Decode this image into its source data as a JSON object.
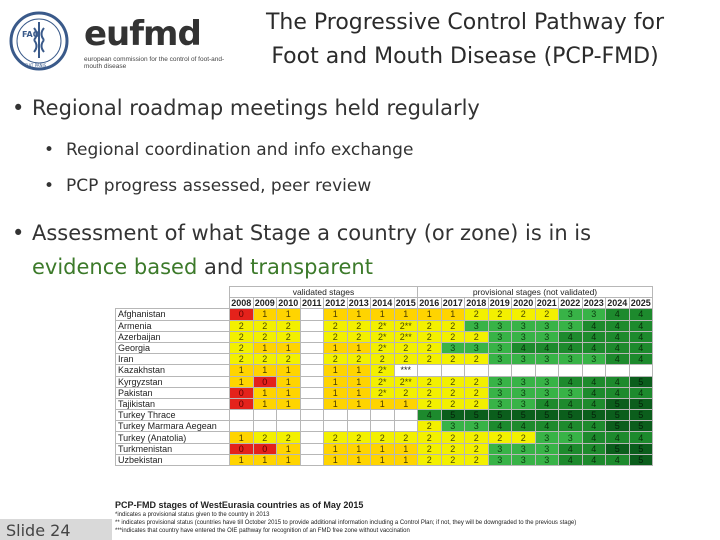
{
  "header": {
    "fao_text": "FAO",
    "fao_motto": "FIAT PANIS",
    "eufmd_word": "eufmd",
    "eufmd_sub": "european commission for the control of foot-and-mouth disease",
    "title_line1": "The Progressive Control Pathway for",
    "title_line2": "Foot and Mouth Disease (PCP-FMD)"
  },
  "bullets": {
    "b1": "Regional roadmap meetings held regularly",
    "b1_sub": [
      "Regional coordination and info exchange",
      "PCP progress assessed, peer review"
    ],
    "b2_part1": "Assessment of what Stage a country (or zone) is in is",
    "b2_part2_green1": "evidence based",
    "b2_part2_and": " and ",
    "b2_part2_green2": "transparent"
  },
  "table": {
    "group_validated": "validated stages",
    "group_provisional": "provisional stages (not validated)",
    "years": [
      "2008",
      "2009",
      "2010",
      "2011",
      "2012",
      "2013",
      "2014",
      "2015",
      "2016",
      "2017",
      "2018",
      "2019",
      "2020",
      "2021",
      "2022",
      "2023",
      "2024",
      "2025"
    ],
    "rows": [
      {
        "country": "Afghanistan",
        "cells": [
          "0",
          "1",
          "1",
          "",
          "1",
          "1",
          "1",
          "1",
          "1",
          "1",
          "2",
          "2",
          "2",
          "2",
          "3",
          "3",
          "4",
          "4"
        ]
      },
      {
        "country": "Armenia",
        "cells": [
          "2",
          "2",
          "2",
          "",
          "2",
          "2",
          "2*",
          "2**",
          "2",
          "2",
          "3",
          "3",
          "3",
          "3",
          "3",
          "4",
          "4",
          "4"
        ]
      },
      {
        "country": "Azerbaijan",
        "cells": [
          "2",
          "2",
          "2",
          "",
          "2",
          "2",
          "2*",
          "2**",
          "2",
          "2",
          "2",
          "3",
          "3",
          "3",
          "4",
          "4",
          "4",
          "4"
        ]
      },
      {
        "country": "Georgia",
        "cells": [
          "2",
          "1",
          "1",
          "",
          "1",
          "1",
          "2*",
          "2",
          "2",
          "3",
          "3",
          "3",
          "4",
          "4",
          "4",
          "4",
          "4",
          "4"
        ]
      },
      {
        "country": "Iran",
        "cells": [
          "2",
          "2",
          "2",
          "",
          "2",
          "2",
          "2",
          "2",
          "2",
          "2",
          "2",
          "3",
          "3",
          "3",
          "3",
          "3",
          "4",
          "4"
        ]
      },
      {
        "country": "Kazakhstan",
        "cells": [
          "1",
          "1",
          "1",
          "",
          "1",
          "1",
          "2*",
          "***",
          "",
          "",
          "",
          "",
          "",
          "",
          "",
          "",
          "",
          ""
        ]
      },
      {
        "country": "Kyrgyzstan",
        "cells": [
          "1",
          "0",
          "1",
          "",
          "1",
          "1",
          "2*",
          "2**",
          "2",
          "2",
          "2",
          "3",
          "3",
          "3",
          "4",
          "4",
          "4",
          "5"
        ]
      },
      {
        "country": "Pakistan",
        "cells": [
          "0",
          "1",
          "1",
          "",
          "1",
          "1",
          "2*",
          "2",
          "2",
          "2",
          "2",
          "3",
          "3",
          "3",
          "3",
          "4",
          "4",
          "4"
        ]
      },
      {
        "country": "Tajikistan",
        "cells": [
          "0",
          "1",
          "1",
          "",
          "1",
          "1",
          "1",
          "1",
          "2",
          "2",
          "2",
          "3",
          "3",
          "4",
          "4",
          "4",
          "5",
          "5"
        ]
      },
      {
        "country": "Turkey Thrace",
        "cells": [
          "",
          "",
          "",
          "",
          "",
          "",
          "",
          "",
          "4",
          "5",
          "5",
          "5",
          "5",
          "5",
          "5",
          "5",
          "5",
          "5"
        ]
      },
      {
        "country": "Turkey Marmara Aegean",
        "cells": [
          "",
          "",
          "",
          "",
          "",
          "",
          "",
          "",
          "2",
          "3",
          "3",
          "4",
          "4",
          "4",
          "4",
          "4",
          "5",
          "5"
        ]
      },
      {
        "country": "Turkey (Anatolia)",
        "cells": [
          "1",
          "2",
          "2",
          "",
          "2",
          "2",
          "2",
          "2",
          "2",
          "2",
          "2",
          "2",
          "2",
          "3",
          "3",
          "4",
          "4",
          "4"
        ]
      },
      {
        "country": "Turkmenistan",
        "cells": [
          "0",
          "0",
          "1",
          "",
          "1",
          "1",
          "1",
          "1",
          "2",
          "2",
          "2",
          "3",
          "3",
          "3",
          "4",
          "4",
          "5",
          "5"
        ]
      },
      {
        "country": "Uzbekistan",
        "cells": [
          "1",
          "1",
          "1",
          "",
          "1",
          "1",
          "1",
          "1",
          "2",
          "2",
          "2",
          "3",
          "3",
          "3",
          "4",
          "4",
          "4",
          "5"
        ]
      }
    ]
  },
  "notes": {
    "title": "PCP-FMD stages of WestEurasia countries as of May 2015",
    "lines": [
      "*indicates a provisional status given to the country in 2013",
      "** indicates provisional status (countries have till October 2015 to provide additional information including a Control Plan; if not, they will be downgraded to the previous stage)",
      "***indicates that country have entered the OIE pathway for recognition of an FMD free zone without vaccination"
    ]
  },
  "footer": {
    "slide_label": "Slide 24"
  },
  "colors": {
    "stage0": "#e4221b",
    "stage1": "#ffd400",
    "stage2": "#f3f000",
    "stage3": "#38b347",
    "stage4": "#1d8a2d",
    "stage5": "#0b5e1c",
    "green_text": "#3c7a2a"
  }
}
